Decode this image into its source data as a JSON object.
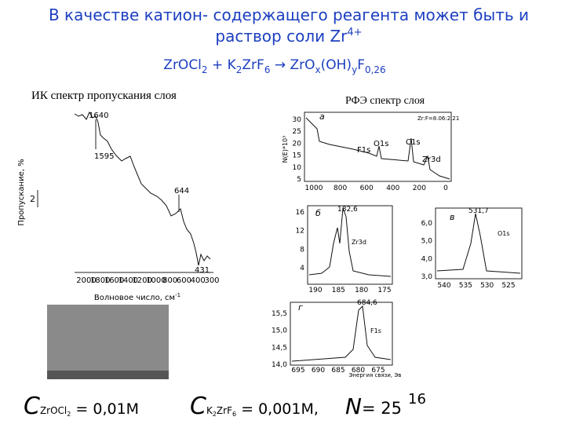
{
  "title": {
    "line1": "В качестве катион- содержащего реагента может быть и",
    "line2": "раствор соли Zr",
    "sup": "4+"
  },
  "formula": [
    "ZrOCl",
    "2",
    " + K",
    "2",
    "ZrF",
    "6",
    "  →  ZrO",
    "x",
    "(OH)",
    "y",
    "F",
    "0,26"
  ],
  "ir_spectrum": {
    "title": "ИК спектр пропускания слоя",
    "y_label": "Пропускание, %",
    "scale_label": "2",
    "x_label": [
      "Волновое число, см",
      "-1"
    ],
    "x_ticks": [
      "2000",
      "1800",
      "1600",
      "1400",
      "1200",
      "1000",
      "800",
      "600",
      "400",
      "300"
    ],
    "peaks": [
      "1640",
      "1595",
      "644",
      "431"
    ]
  },
  "xps": {
    "title": "РФЭ спектр слоя",
    "panels": [
      {
        "label": "а",
        "y_label": "N(E)*10³",
        "y_ticks": [
          "30",
          "25",
          "20",
          "15",
          "10",
          "5"
        ],
        "x_ticks": [
          "1000",
          "800",
          "600",
          "400",
          "200",
          "0"
        ],
        "annotations": [
          "Zr:F=8.06:2.21",
          "F1s",
          "O1s",
          "C1s",
          "Zr3d"
        ]
      },
      {
        "label": "б",
        "y_ticks": [
          "16",
          "12",
          "8",
          "4"
        ],
        "x_ticks": [
          "190",
          "185",
          "180",
          "175"
        ],
        "annotations": [
          "182,6",
          "Zr3d"
        ]
      },
      {
        "label": "в",
        "y_ticks": [
          "6,0",
          "5,0",
          "4,0",
          "3,0"
        ],
        "x_ticks": [
          "540",
          "535",
          "530",
          "525"
        ],
        "annotations": [
          "531,7",
          "O1s"
        ]
      },
      {
        "label": "г",
        "y_ticks": [
          "15,5",
          "15,0",
          "14,5",
          "14,0"
        ],
        "x_ticks": [
          "695",
          "690",
          "685",
          "680",
          "675"
        ],
        "annotations": [
          "684,6",
          "F1s"
        ],
        "x_label": "Энергия связи, Эв"
      }
    ]
  },
  "footer": {
    "concentrations": [
      {
        "symbol": "C",
        "index": [
          "ZrOCl",
          "2"
        ],
        "value": " = 0,01M"
      },
      {
        "symbol": "C",
        "index": [
          "K",
          "2",
          "ZrF",
          "6"
        ],
        "value": " = 0,001M,"
      }
    ],
    "n": {
      "symbol": "N",
      "value": "= 25"
    },
    "page_number": "16"
  }
}
